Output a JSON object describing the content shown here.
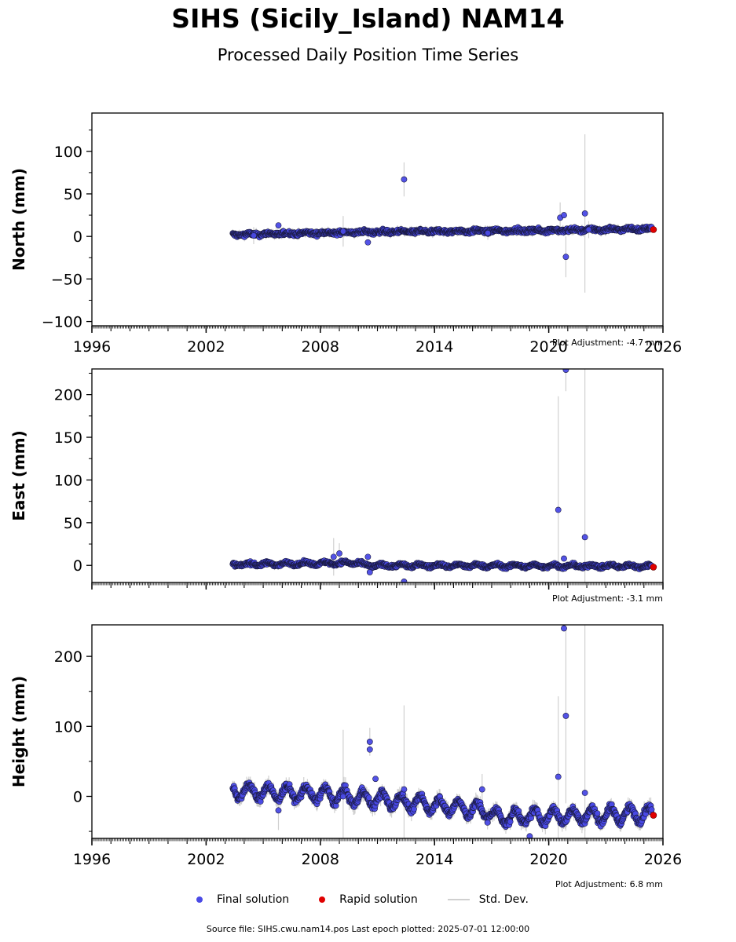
{
  "title": "SIHS (Sicily_Island) NAM14",
  "subtitle": "Processed Daily Position Time Series",
  "footer": "Source file: SIHS.cwu.nam14.pos  Last epoch plotted: 2025-07-01 12:00:00",
  "legend": {
    "final": "Final solution",
    "rapid": "Rapid solution",
    "std": "Std. Dev."
  },
  "colors": {
    "final": "#4a4ae6",
    "final_edge": "#1a1a40",
    "rapid": "#e00000",
    "std": "#d0d0d0"
  },
  "chart_data": [
    {
      "type": "scatter",
      "ylabel": "North (mm)",
      "adjustment": "Plot Adjustment: -4.7 mm",
      "xlim": [
        1996,
        2026
      ],
      "ylim": [
        -105,
        145
      ],
      "yticks": [
        -100,
        -50,
        0,
        50,
        100
      ],
      "ytick_labels": [
        "−100",
        "−50",
        "0",
        "50",
        "100"
      ],
      "xticks": [
        1996,
        2002,
        2008,
        2014,
        2020,
        2026
      ],
      "xtick_labels": [
        "1996",
        "2002",
        "2008",
        "2014",
        "2020",
        "2026"
      ],
      "span": [
        2003.4,
        2025.4
      ],
      "baseline": [
        [
          2003.4,
          2
        ],
        [
          2010,
          5
        ],
        [
          2020,
          7
        ],
        [
          2025.4,
          9
        ]
      ],
      "noise": 2.2,
      "seasonal": 1.0,
      "outliers": [
        {
          "x": 2004.5,
          "y": 1,
          "err": 10
        },
        {
          "x": 2005.8,
          "y": 13,
          "err": 0
        },
        {
          "x": 2009.2,
          "y": 6,
          "err": 18
        },
        {
          "x": 2010.5,
          "y": -7,
          "err": 0
        },
        {
          "x": 2012.4,
          "y": 67,
          "err": 20
        },
        {
          "x": 2016.8,
          "y": 4,
          "err": 8
        },
        {
          "x": 2020.6,
          "y": 22,
          "err": 18
        },
        {
          "x": 2020.8,
          "y": 25,
          "err": 0
        },
        {
          "x": 2020.9,
          "y": -24,
          "err": 24
        },
        {
          "x": 2021.9,
          "y": 27,
          "err": 93
        },
        {
          "x": 2022.1,
          "y": 8,
          "err": 10
        }
      ],
      "rapid": [
        {
          "x": 2025.5,
          "y": 8
        }
      ]
    },
    {
      "type": "scatter",
      "ylabel": "East (mm)",
      "adjustment": "Plot Adjustment: -3.1 mm",
      "xlim": [
        1996,
        2026
      ],
      "ylim": [
        -20,
        230
      ],
      "yticks": [
        0,
        50,
        100,
        150,
        200
      ],
      "ytick_labels": [
        "0",
        "50",
        "100",
        "150",
        "200"
      ],
      "xticks": [
        1996,
        2002,
        2008,
        2014,
        2020,
        2026
      ],
      "xtick_labels": [
        "",
        "",
        "",
        "",
        "",
        ""
      ],
      "span": [
        2003.4,
        2025.4
      ],
      "baseline": [
        [
          2003.4,
          1
        ],
        [
          2009.9,
          3
        ],
        [
          2010.4,
          0
        ],
        [
          2025.4,
          -1
        ]
      ],
      "noise": 1.8,
      "seasonal": 1.5,
      "outliers": [
        {
          "x": 2008.7,
          "y": 10,
          "err": 22
        },
        {
          "x": 2009.0,
          "y": 14,
          "err": 12
        },
        {
          "x": 2010.5,
          "y": 10,
          "err": 0
        },
        {
          "x": 2010.6,
          "y": -8,
          "err": 0
        },
        {
          "x": 2012.4,
          "y": -19,
          "err": 0
        },
        {
          "x": 2020.5,
          "y": 65,
          "err": 133
        },
        {
          "x": 2020.8,
          "y": 8,
          "err": 0
        },
        {
          "x": 2020.9,
          "y": 229,
          "err": 25
        },
        {
          "x": 2021.9,
          "y": 33,
          "err": 200
        }
      ],
      "rapid": [
        {
          "x": 2025.5,
          "y": -2
        }
      ]
    },
    {
      "type": "scatter",
      "ylabel": "Height (mm)",
      "adjustment": "Plot Adjustment: 6.8 mm",
      "xlim": [
        1996,
        2026
      ],
      "ylim": [
        -60,
        245
      ],
      "yticks": [
        0,
        100,
        200
      ],
      "ytick_labels": [
        "0",
        "100",
        "200"
      ],
      "xticks": [
        1996,
        2002,
        2008,
        2014,
        2020,
        2026
      ],
      "xtick_labels": [
        "1996",
        "2002",
        "2008",
        "2014",
        "2020",
        "2026"
      ],
      "span": [
        2003.4,
        2025.4
      ],
      "baseline": [
        [
          2003.4,
          8
        ],
        [
          2008,
          3
        ],
        [
          2014,
          -12
        ],
        [
          2016.9,
          -22
        ],
        [
          2017.2,
          -30
        ],
        [
          2025.4,
          -25
        ]
      ],
      "noise": 5.0,
      "seasonal": 10.0,
      "outliers": [
        {
          "x": 2005.8,
          "y": -20,
          "err": 28
        },
        {
          "x": 2009.2,
          "y": 0,
          "err": 95
        },
        {
          "x": 2010.6,
          "y": 67,
          "err": 0
        },
        {
          "x": 2010.6,
          "y": 78,
          "err": 20
        },
        {
          "x": 2010.9,
          "y": 25,
          "err": 0
        },
        {
          "x": 2012.4,
          "y": 10,
          "err": 120
        },
        {
          "x": 2016.5,
          "y": 10,
          "err": 22
        },
        {
          "x": 2020.5,
          "y": 28,
          "err": 115
        },
        {
          "x": 2020.8,
          "y": 240,
          "err": 0
        },
        {
          "x": 2020.9,
          "y": 115,
          "err": 125
        },
        {
          "x": 2021.9,
          "y": 5,
          "err": 240
        },
        {
          "x": 2019.0,
          "y": -57,
          "err": 0
        }
      ],
      "rapid": [
        {
          "x": 2025.5,
          "y": -27
        }
      ]
    }
  ]
}
